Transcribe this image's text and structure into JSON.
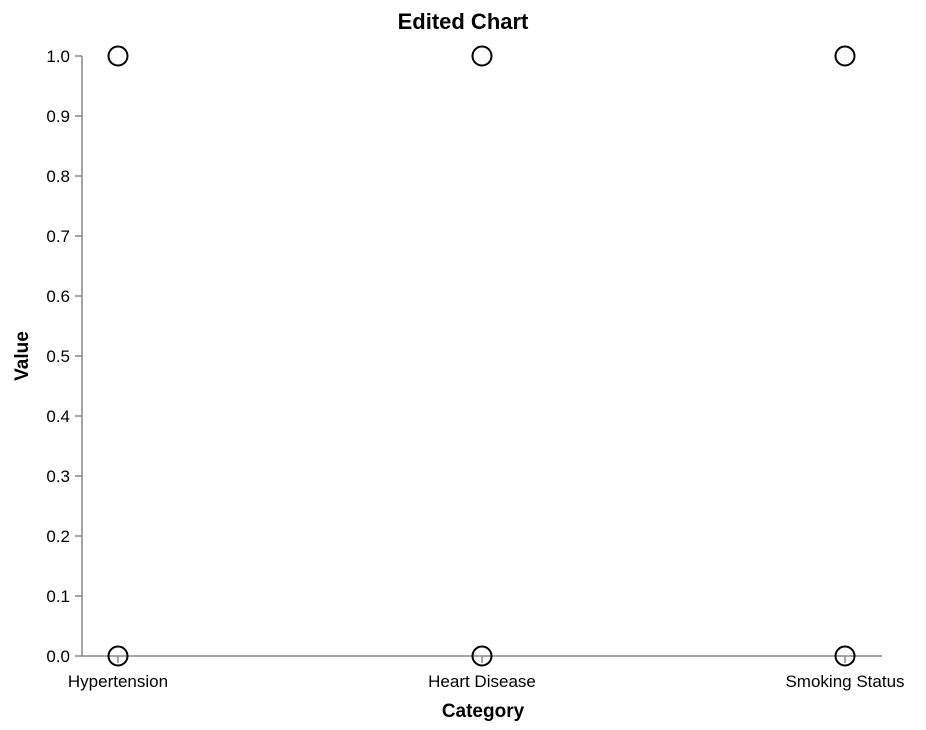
{
  "chart_data": {
    "type": "scatter",
    "title": "Edited Chart",
    "xlabel": "Category",
    "ylabel": "Value",
    "categories": [
      "Hypertension",
      "Heart Disease",
      "Smoking Status"
    ],
    "ylim": [
      0,
      1
    ],
    "yticks": [
      "0.0",
      "0.1",
      "0.2",
      "0.3",
      "0.4",
      "0.5",
      "0.6",
      "0.7",
      "0.8",
      "0.9",
      "1.0"
    ],
    "grid": false,
    "points": [
      {
        "x": "Hypertension",
        "y": 1
      },
      {
        "x": "Hypertension",
        "y": 0
      },
      {
        "x": "Heart Disease",
        "y": 1
      },
      {
        "x": "Heart Disease",
        "y": 0
      },
      {
        "x": "Smoking Status",
        "y": 1
      },
      {
        "x": "Smoking Status",
        "y": 0
      }
    ],
    "colors": {
      "point_stroke": "#000000",
      "axis": "#888888"
    }
  }
}
